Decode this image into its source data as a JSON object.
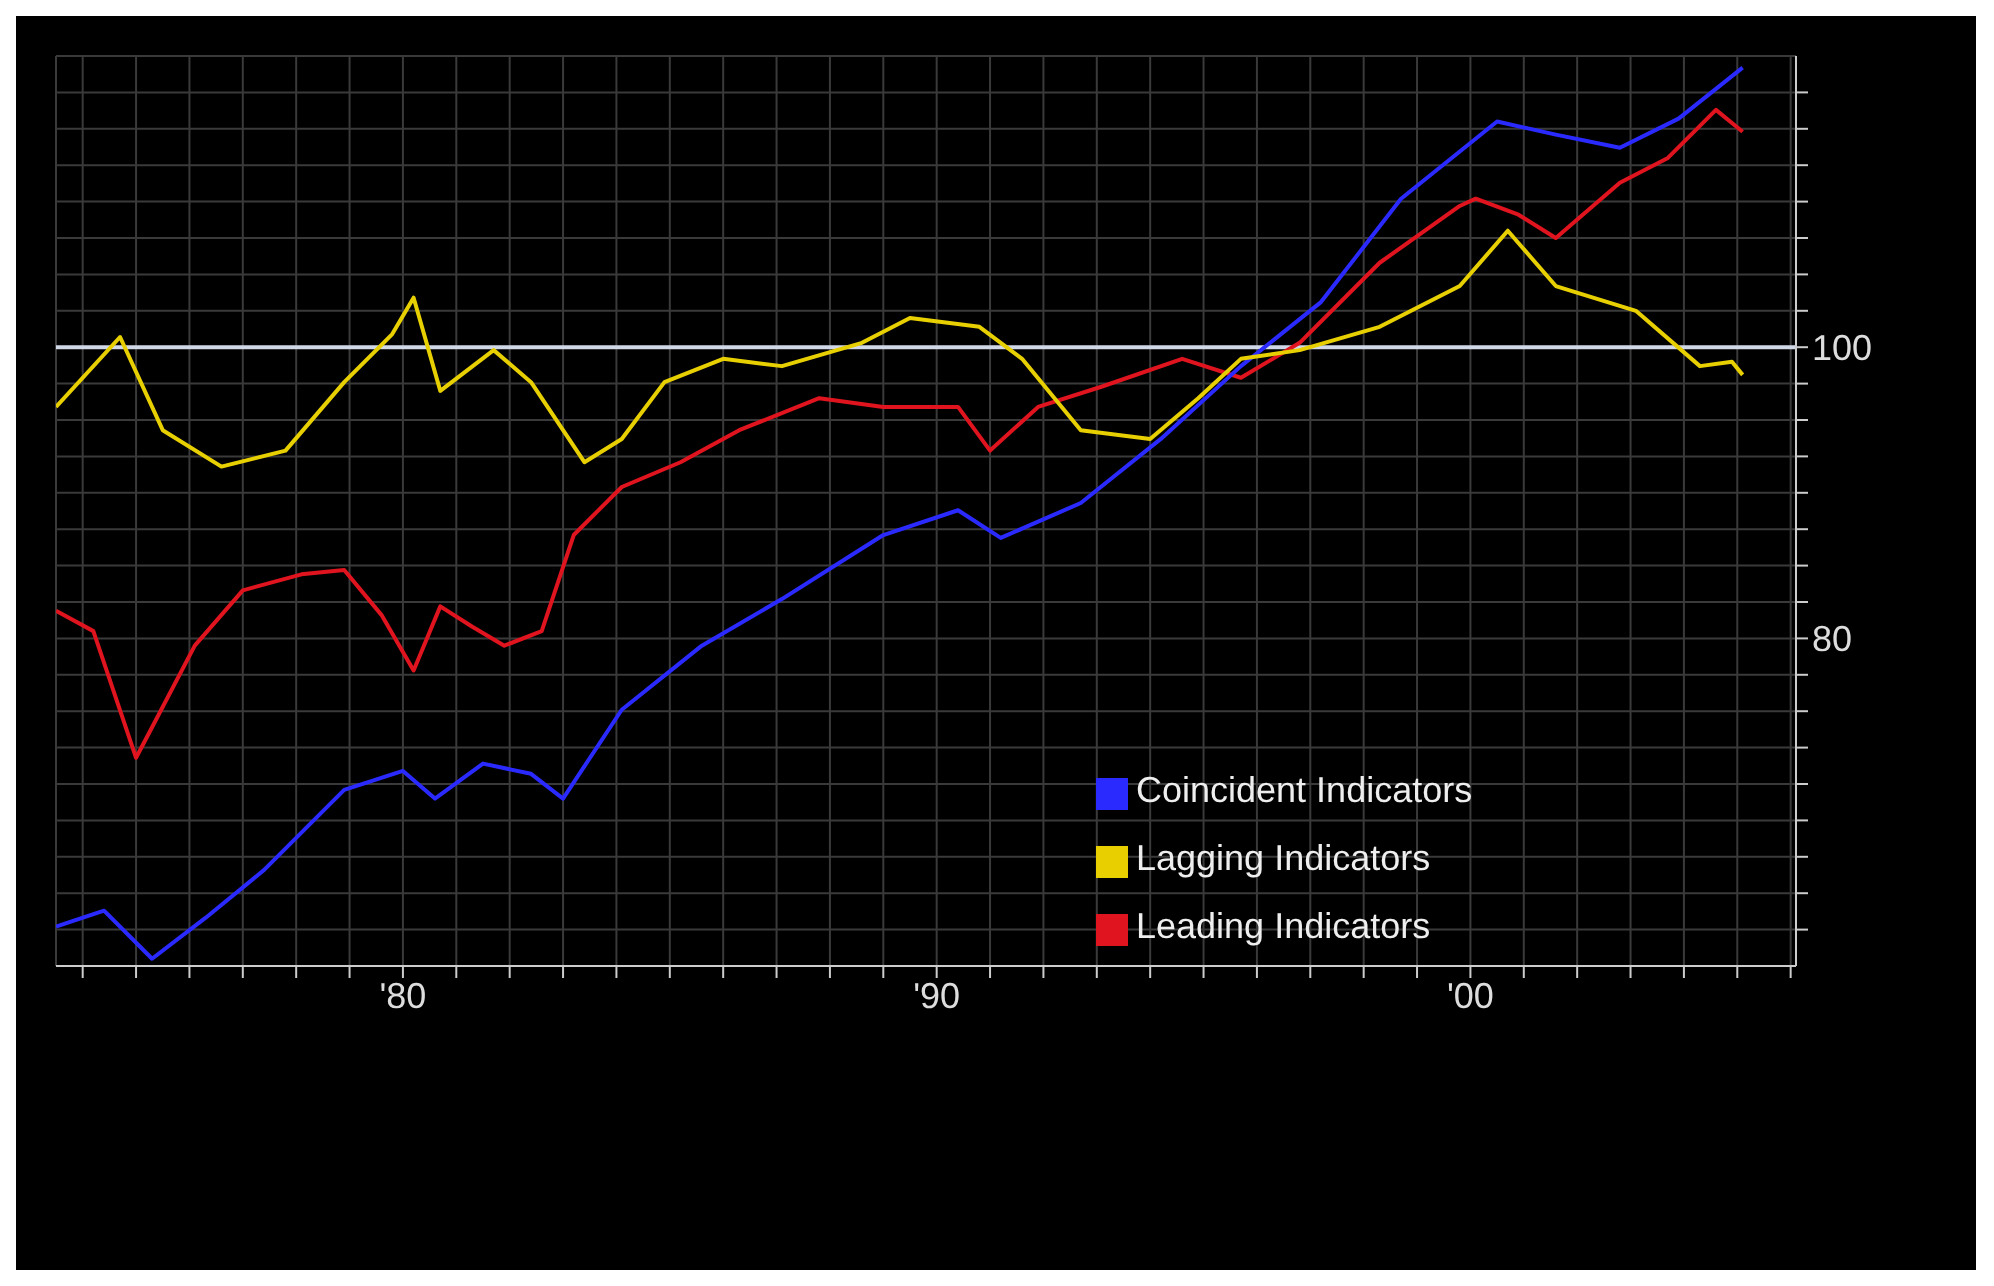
{
  "chart_data": {
    "type": "line",
    "xlim": [
      1973.5,
      2006.1
    ],
    "ylim": [
      57.5,
      120
    ],
    "xticks": [
      {
        "value": 1974,
        "label": null
      },
      {
        "value": 1975,
        "label": null
      },
      {
        "value": 1976,
        "label": null
      },
      {
        "value": 1977,
        "label": null
      },
      {
        "value": 1978,
        "label": null
      },
      {
        "value": 1979,
        "label": null
      },
      {
        "value": 1980,
        "label": "'80"
      },
      {
        "value": 1981,
        "label": null
      },
      {
        "value": 1982,
        "label": null
      },
      {
        "value": 1983,
        "label": null
      },
      {
        "value": 1984,
        "label": null
      },
      {
        "value": 1985,
        "label": null
      },
      {
        "value": 1986,
        "label": null
      },
      {
        "value": 1987,
        "label": null
      },
      {
        "value": 1988,
        "label": null
      },
      {
        "value": 1989,
        "label": null
      },
      {
        "value": 1990,
        "label": "'90"
      },
      {
        "value": 1991,
        "label": null
      },
      {
        "value": 1992,
        "label": null
      },
      {
        "value": 1993,
        "label": null
      },
      {
        "value": 1994,
        "label": null
      },
      {
        "value": 1995,
        "label": null
      },
      {
        "value": 1996,
        "label": null
      },
      {
        "value": 1997,
        "label": null
      },
      {
        "value": 1998,
        "label": null
      },
      {
        "value": 1999,
        "label": null
      },
      {
        "value": 2000,
        "label": "'00"
      },
      {
        "value": 2001,
        "label": null
      },
      {
        "value": 2002,
        "label": null
      },
      {
        "value": 2003,
        "label": null
      },
      {
        "value": 2004,
        "label": null
      },
      {
        "value": 2005,
        "label": null
      },
      {
        "value": 2006,
        "label": null
      }
    ],
    "yticks": [
      {
        "value": 60,
        "label": null
      },
      {
        "value": 62.5,
        "label": null
      },
      {
        "value": 65,
        "label": null
      },
      {
        "value": 67.5,
        "label": null
      },
      {
        "value": 70,
        "label": null
      },
      {
        "value": 72.5,
        "label": null
      },
      {
        "value": 75,
        "label": null
      },
      {
        "value": 77.5,
        "label": null
      },
      80,
      {
        "value": 82.5,
        "label": null
      },
      {
        "value": 85,
        "label": null
      },
      {
        "value": 87.5,
        "label": null
      },
      {
        "value": 90,
        "label": null
      },
      {
        "value": 92.5,
        "label": null
      },
      {
        "value": 95,
        "label": null
      },
      {
        "value": 97.5,
        "label": null
      },
      100,
      {
        "value": 102.5,
        "label": null
      },
      {
        "value": 105,
        "label": null
      },
      {
        "value": 107.5,
        "label": null
      },
      {
        "value": 110,
        "label": null
      },
      {
        "value": 112.5,
        "label": null
      },
      {
        "value": 115,
        "label": null
      },
      {
        "value": 117.5,
        "label": null
      }
    ],
    "grid": true,
    "legend": "bottom right",
    "marker": "none",
    "line_style": "solid",
    "ref_lines": [
      {
        "axis": "y",
        "value": 100,
        "color": "#d0d8e8",
        "line_style": "solid"
      }
    ],
    "series": [
      {
        "name": "Leading Indicators",
        "color": "#e0141e",
        "x": [
          1973.5,
          1974.2,
          1975.0,
          1975.3,
          1976.1,
          1977.0,
          1978.1,
          1978.9,
          1979.6,
          1980.2,
          1980.7,
          1981.3,
          1981.9,
          1982.6,
          1983.2,
          1984.1,
          1985.2,
          1986.3,
          1987.8,
          1989.0,
          1990.4,
          1991.0,
          1991.9,
          1993.1,
          1994.6,
          1995.7,
          1996.8,
          1998.3,
          1999.8,
          2000.1,
          2000.9,
          2001.6,
          2002.8,
          2003.7,
          2004.6,
          2005.1
        ],
        "values": [
          81.9,
          80.5,
          71.8,
          73.9,
          79.5,
          83.3,
          84.4,
          84.7,
          81.6,
          77.8,
          82.2,
          80.8,
          79.5,
          80.5,
          87.1,
          90.4,
          92.1,
          94.3,
          96.5,
          95.9,
          95.9,
          92.9,
          95.9,
          97.3,
          99.2,
          97.9,
          100.3,
          105.8,
          109.7,
          110.2,
          109.1,
          107.5,
          111.3,
          113.0,
          116.3,
          114.8
        ]
      },
      {
        "name": "Coincident Indicators",
        "color": "#2a2aff",
        "x": [
          1973.5,
          1974.4,
          1975.3,
          1976.3,
          1977.4,
          1978.9,
          1980.0,
          1980.6,
          1981.5,
          1982.4,
          1983.0,
          1984.1,
          1985.6,
          1987.1,
          1989.0,
          1990.4,
          1991.2,
          1992.7,
          1994.2,
          1995.7,
          1997.2,
          1998.7,
          2000.5,
          2001.6,
          2002.8,
          2003.9,
          2005.1
        ],
        "values": [
          60.2,
          61.3,
          58.0,
          60.8,
          64.1,
          69.6,
          70.9,
          69.0,
          71.4,
          70.7,
          69.0,
          75.1,
          79.5,
          82.7,
          87.1,
          88.8,
          86.9,
          89.3,
          93.7,
          98.7,
          103.1,
          110.2,
          115.5,
          114.6,
          113.7,
          115.7,
          119.2
        ]
      },
      {
        "name": "Lagging Indicators",
        "color": "#e8d000",
        "x": [
          1973.5,
          1974.7,
          1975.5,
          1976.6,
          1977.8,
          1978.9,
          1979.8,
          1980.2,
          1980.7,
          1981.7,
          1982.4,
          1983.4,
          1984.1,
          1984.9,
          1986.0,
          1987.1,
          1988.6,
          1989.5,
          1990.8,
          1991.6,
          1992.7,
          1994.0,
          1994.9,
          1995.7,
          1996.8,
          1998.3,
          1999.8,
          2000.7,
          2001.6,
          2003.1,
          2004.3,
          2004.9,
          2005.1
        ],
        "values": [
          95.9,
          100.7,
          94.3,
          91.8,
          92.9,
          97.6,
          100.9,
          103.4,
          97.0,
          99.8,
          97.6,
          92.1,
          93.7,
          97.6,
          99.2,
          98.7,
          100.3,
          102.0,
          101.4,
          99.2,
          94.3,
          93.7,
          96.5,
          99.2,
          99.8,
          101.4,
          104.2,
          108.0,
          104.2,
          102.5,
          98.7,
          99.0,
          98.1
        ]
      }
    ]
  }
}
